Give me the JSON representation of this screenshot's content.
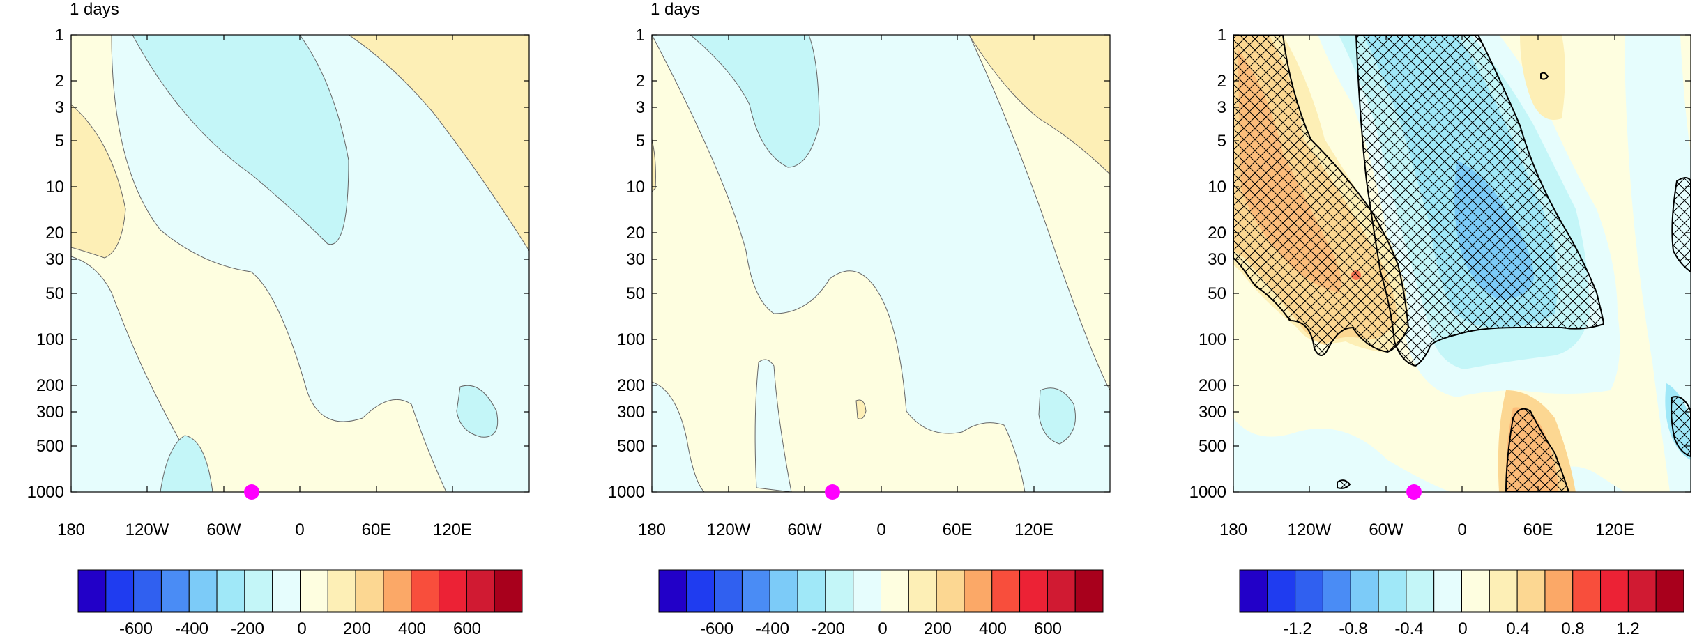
{
  "chart_data": [
    {
      "type": "heatmap",
      "title": "1 days",
      "x_ticks": [
        "180",
        "120W",
        "60W",
        "0",
        "60E",
        "120E"
      ],
      "y_ticks": [
        "1",
        "2",
        "3",
        "5",
        "10",
        "20",
        "30",
        "50",
        "100",
        "200",
        "300",
        "500",
        "1000"
      ],
      "y_scale": "log",
      "ylim": [
        1000,
        1
      ],
      "marker": {
        "lon": -37,
        "level": 1000,
        "color": "#ff00ff"
      },
      "colorbar": {
        "labels": [
          "-600",
          "-400",
          "-200",
          "0",
          "200",
          "400",
          "600"
        ],
        "colors": [
          "#2200c8",
          "#1f3cf0",
          "#3060f0",
          "#4a8cf5",
          "#7ccbf8",
          "#a0e8f8",
          "#c4f6f8",
          "#e6fdfd",
          "#fefee0",
          "#fdefb6",
          "#fcd792",
          "#fba867",
          "#f84e3c",
          "#ec2235",
          "#d01a32",
          "#a8001c"
        ]
      }
    },
    {
      "type": "heatmap",
      "title": "1 days",
      "x_ticks": [
        "180",
        "120W",
        "60W",
        "0",
        "60E",
        "120E"
      ],
      "y_ticks": [
        "1",
        "2",
        "3",
        "5",
        "10",
        "20",
        "30",
        "50",
        "100",
        "200",
        "300",
        "500",
        "1000"
      ],
      "y_scale": "log",
      "ylim": [
        1000,
        1
      ],
      "marker": {
        "lon": -37,
        "level": 1000,
        "color": "#ff00ff"
      },
      "colorbar": {
        "labels": [
          "-600",
          "-400",
          "-200",
          "0",
          "200",
          "400",
          "600"
        ],
        "colors": [
          "#2200c8",
          "#1f3cf0",
          "#3060f0",
          "#4a8cf5",
          "#7ccbf8",
          "#a0e8f8",
          "#c4f6f8",
          "#e6fdfd",
          "#fefee0",
          "#fdefb6",
          "#fcd792",
          "#fba867",
          "#f84e3c",
          "#ec2235",
          "#d01a32",
          "#a8001c"
        ]
      }
    },
    {
      "type": "heatmap",
      "title": "",
      "x_ticks": [
        "180",
        "120W",
        "60W",
        "0",
        "60E",
        "120E"
      ],
      "y_ticks": [
        "1",
        "2",
        "3",
        "5",
        "10",
        "20",
        "30",
        "50",
        "100",
        "200",
        "300",
        "500",
        "1000"
      ],
      "y_scale": "log",
      "ylim": [
        1000,
        1
      ],
      "hatched_regions": true,
      "marker": {
        "lon": -37,
        "level": 1000,
        "color": "#ff00ff"
      },
      "colorbar": {
        "labels": [
          "-1.2",
          "-0.8",
          "-0.4",
          "0",
          "0.4",
          "0.8",
          "1.2"
        ],
        "colors": [
          "#2200c8",
          "#1f3cf0",
          "#3060f0",
          "#4a8cf5",
          "#7ccbf8",
          "#a0e8f8",
          "#c4f6f8",
          "#e6fdfd",
          "#fefee0",
          "#fdefb6",
          "#fcd792",
          "#fba867",
          "#f84e3c",
          "#ec2235",
          "#d01a32",
          "#a8001c"
        ]
      }
    }
  ]
}
